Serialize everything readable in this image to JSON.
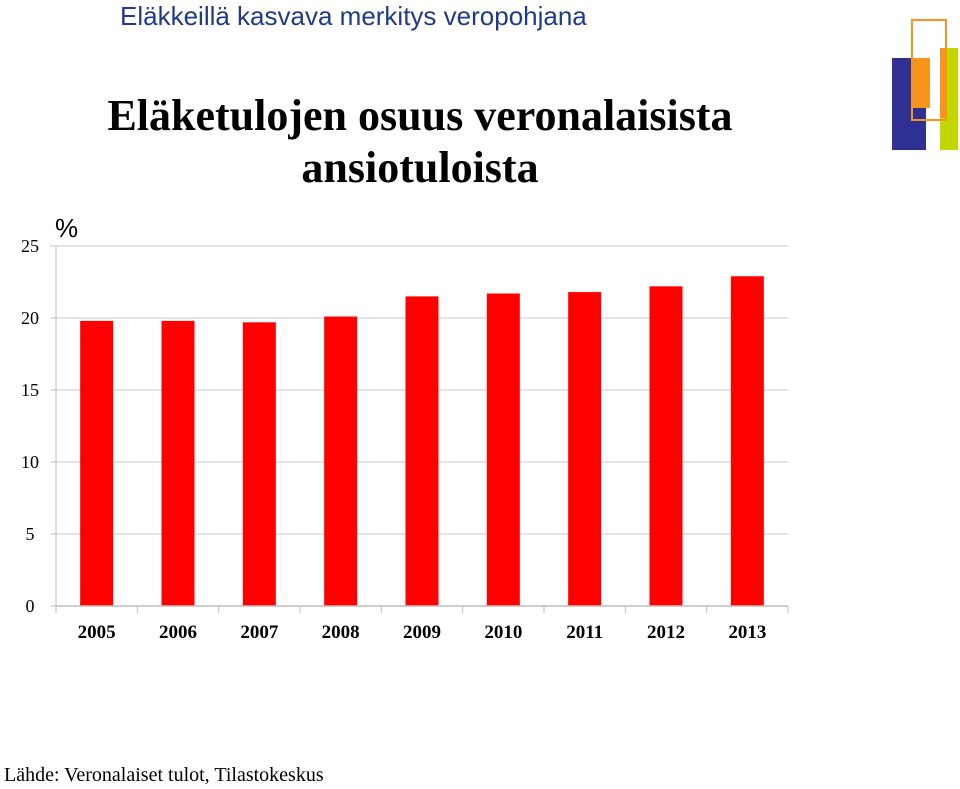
{
  "header": {
    "title": "Eläkkeillä kasvava merkitys veropohjana"
  },
  "logo": {
    "name": "brand-logo",
    "colors": [
      "#2e3192",
      "#f7941d",
      "#c4d600",
      "#f7941d"
    ]
  },
  "source": "Lähde: Veronalaiset tulot, Tilastokeskus",
  "colors": {
    "bar": "#ff0000",
    "grid": "#c8c8c8",
    "axis": "#bdbdbd"
  },
  "chart_data": {
    "type": "bar",
    "title": "Eläketulojen osuus veronalaisista ansiotuloista",
    "ylabel": "%",
    "xlabel": "",
    "categories": [
      "2005",
      "2006",
      "2007",
      "2008",
      "2009",
      "2010",
      "2011",
      "2012",
      "2013"
    ],
    "values": [
      19.8,
      19.8,
      19.7,
      20.1,
      21.5,
      21.7,
      21.8,
      22.2,
      22.9
    ],
    "ylim": [
      0,
      25
    ],
    "yticks": [
      0,
      5,
      10,
      15,
      20,
      25
    ],
    "grid": true,
    "legend": "none"
  }
}
